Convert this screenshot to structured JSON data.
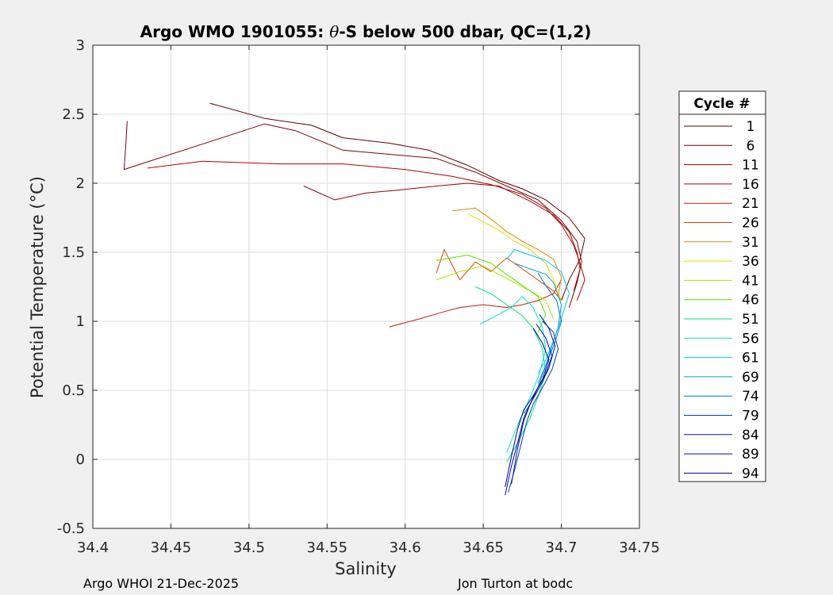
{
  "title_prefix": "Argo WMO 1901055: ",
  "title_symbol": "θ",
  "title_suffix": "-S below 500 dbar,  QC=(1,2)",
  "footer_left": "Argo WHOI 21-Dec-2025",
  "footer_right": "Jon Turton at bodc",
  "chart_data": {
    "type": "line",
    "title": "Argo WMO 1901055: θ-S below 500 dbar,  QC=(1,2)",
    "xlabel": "Salinity",
    "ylabel": "Potential Temperature (°C)",
    "xlim": [
      34.4,
      34.75
    ],
    "ylim": [
      -0.5,
      3
    ],
    "xticks": [
      "34.4",
      "34.45",
      "34.5",
      "34.55",
      "34.6",
      "34.65",
      "34.7",
      "34.75"
    ],
    "yticks": [
      "-0.5",
      "0",
      "0.5",
      "1",
      "1.5",
      "2",
      "2.5",
      "3"
    ],
    "grid": true,
    "legend_title": "Cycle #",
    "legend_position": "right",
    "series": [
      {
        "name": "1",
        "color": "#600000",
        "x": [
          34.475,
          34.51,
          34.54,
          34.56,
          34.59,
          34.615,
          34.64,
          34.66,
          34.675,
          34.69,
          34.705,
          34.715,
          34.712,
          34.705,
          34.7
        ],
        "y": [
          2.58,
          2.47,
          2.42,
          2.33,
          2.29,
          2.24,
          2.13,
          2.02,
          1.96,
          1.88,
          1.75,
          1.6,
          1.45,
          1.3,
          1.15
        ]
      },
      {
        "name": "6",
        "color": "#800000",
        "x": [
          34.422,
          34.421,
          34.42,
          34.51,
          34.53,
          34.56,
          34.59,
          34.62,
          34.645,
          34.665,
          34.685,
          34.7,
          34.71,
          34.713,
          34.71,
          34.705
        ],
        "y": [
          2.45,
          2.25,
          2.1,
          2.43,
          2.38,
          2.24,
          2.21,
          2.18,
          2.08,
          1.98,
          1.88,
          1.73,
          1.58,
          1.43,
          1.28,
          1.1
        ]
      },
      {
        "name": "11",
        "color": "#9a0000",
        "x": [
          34.535,
          34.555,
          34.575,
          34.595,
          34.62,
          34.64,
          34.66,
          34.68,
          34.695,
          34.705,
          34.71,
          34.712,
          34.708
        ],
        "y": [
          1.98,
          1.88,
          1.93,
          1.95,
          1.98,
          2.0,
          1.98,
          1.87,
          1.77,
          1.65,
          1.5,
          1.38,
          1.22
        ]
      },
      {
        "name": "16",
        "color": "#b50000",
        "x": [
          34.435,
          34.47,
          34.52,
          34.56,
          34.6,
          34.63,
          34.655,
          34.675,
          34.69,
          34.7,
          34.708,
          34.712,
          34.715,
          34.71
        ],
        "y": [
          2.11,
          2.16,
          2.14,
          2.14,
          2.1,
          2.05,
          1.99,
          1.92,
          1.82,
          1.7,
          1.55,
          1.42,
          1.3,
          1.15
        ]
      },
      {
        "name": "21",
        "color": "#cc1a00",
        "x": [
          34.59,
          34.61,
          34.625,
          34.635,
          34.65,
          34.665,
          34.675,
          34.685,
          34.695,
          34.7
        ],
        "y": [
          0.96,
          1.02,
          1.07,
          1.1,
          1.12,
          1.1,
          1.12,
          1.15,
          1.2,
          1.3
        ]
      },
      {
        "name": "26",
        "color": "#d94400",
        "x": [
          34.62,
          34.625,
          34.635,
          34.645,
          34.655,
          34.665,
          34.675,
          34.685,
          34.695,
          34.7
        ],
        "y": [
          1.35,
          1.52,
          1.3,
          1.43,
          1.36,
          1.46,
          1.38,
          1.3,
          1.22,
          1.15
        ]
      },
      {
        "name": "31",
        "color": "#e68a00",
        "x": [
          34.63,
          34.645,
          34.655,
          34.665,
          34.675,
          34.685,
          34.695,
          34.7,
          34.698
        ],
        "y": [
          1.8,
          1.82,
          1.74,
          1.65,
          1.58,
          1.52,
          1.45,
          1.32,
          1.18
        ]
      },
      {
        "name": "36",
        "color": "#e6d800",
        "x": [
          34.64,
          34.65,
          34.66,
          34.67,
          34.68,
          34.69,
          34.695,
          34.7
        ],
        "y": [
          1.78,
          1.72,
          1.66,
          1.58,
          1.52,
          1.42,
          1.3,
          1.15
        ]
      },
      {
        "name": "41",
        "color": "#a8e600",
        "x": [
          34.62,
          34.635,
          34.65,
          34.66,
          34.67,
          34.68,
          34.69,
          34.695
        ],
        "y": [
          1.3,
          1.36,
          1.4,
          1.34,
          1.28,
          1.22,
          1.15,
          1.02
        ]
      },
      {
        "name": "46",
        "color": "#55e600",
        "x": [
          34.62,
          34.64,
          34.655,
          34.665,
          34.675,
          34.685,
          34.69,
          34.685
        ],
        "y": [
          1.44,
          1.48,
          1.42,
          1.34,
          1.26,
          1.18,
          1.05,
          0.92
        ]
      },
      {
        "name": "51",
        "color": "#00e67a",
        "x": [
          34.645,
          34.655,
          34.665,
          34.675,
          34.682,
          34.688,
          34.69,
          34.685,
          34.68,
          34.672,
          34.665
        ],
        "y": [
          1.25,
          1.2,
          1.12,
          1.04,
          0.95,
          0.8,
          0.62,
          0.45,
          0.3,
          0.12,
          -0.02
        ]
      },
      {
        "name": "56",
        "color": "#00e6c4",
        "x": [
          34.648,
          34.66,
          34.668,
          34.675,
          34.682,
          34.688,
          34.69,
          34.686,
          34.68,
          34.672,
          34.665
        ],
        "y": [
          0.98,
          1.05,
          1.1,
          1.18,
          1.1,
          0.95,
          0.8,
          0.62,
          0.45,
          0.25,
          0.05
        ]
      },
      {
        "name": "61",
        "color": "#00c8f0",
        "x": [
          34.665,
          34.67,
          34.68,
          34.69,
          34.7,
          34.705,
          34.7,
          34.695,
          34.69,
          34.685
        ],
        "y": [
          1.45,
          1.52,
          1.48,
          1.44,
          1.36,
          1.2,
          1.02,
          0.86,
          0.72,
          0.62
        ]
      },
      {
        "name": "69",
        "color": "#00a0d8",
        "x": [
          34.67,
          34.68,
          34.69,
          34.695,
          34.7,
          34.698,
          34.694,
          34.69,
          34.685
        ],
        "y": [
          1.42,
          1.38,
          1.34,
          1.28,
          1.12,
          0.96,
          0.82,
          0.68,
          0.55
        ]
      },
      {
        "name": "74",
        "color": "#0078c8",
        "x": [
          34.685,
          34.69,
          34.697,
          34.7,
          34.696,
          34.69,
          34.685,
          34.68,
          34.676
        ],
        "y": [
          1.35,
          1.26,
          1.15,
          1.0,
          0.85,
          0.68,
          0.52,
          0.4,
          0.33
        ]
      },
      {
        "name": "79",
        "color": "#0044b4",
        "x": [
          34.688,
          34.695,
          34.698,
          34.694,
          34.688,
          34.682,
          34.678,
          34.674,
          34.67,
          34.666
        ],
        "y": [
          1.0,
          0.92,
          0.8,
          0.65,
          0.52,
          0.4,
          0.28,
          0.1,
          -0.08,
          -0.24
        ]
      },
      {
        "name": "84",
        "color": "#00189a",
        "x": [
          34.686,
          34.692,
          34.696,
          34.692,
          34.686,
          34.68,
          34.676,
          34.672,
          34.668
        ],
        "y": [
          1.05,
          0.95,
          0.82,
          0.66,
          0.52,
          0.4,
          0.28,
          0.08,
          -0.18
        ]
      },
      {
        "name": "89",
        "color": "#0000d0",
        "x": [
          34.684,
          34.69,
          34.694,
          34.69,
          34.684,
          34.68,
          34.676,
          34.672,
          34.668,
          34.664
        ],
        "y": [
          0.98,
          0.88,
          0.75,
          0.62,
          0.5,
          0.4,
          0.3,
          0.12,
          -0.05,
          -0.26
        ]
      },
      {
        "name": "94",
        "color": "#000080",
        "x": [
          34.682,
          34.688,
          34.692,
          34.688,
          34.682,
          34.676,
          34.672,
          34.668,
          34.664
        ],
        "y": [
          0.95,
          0.84,
          0.72,
          0.58,
          0.46,
          0.36,
          0.22,
          0.02,
          -0.2
        ]
      }
    ]
  }
}
